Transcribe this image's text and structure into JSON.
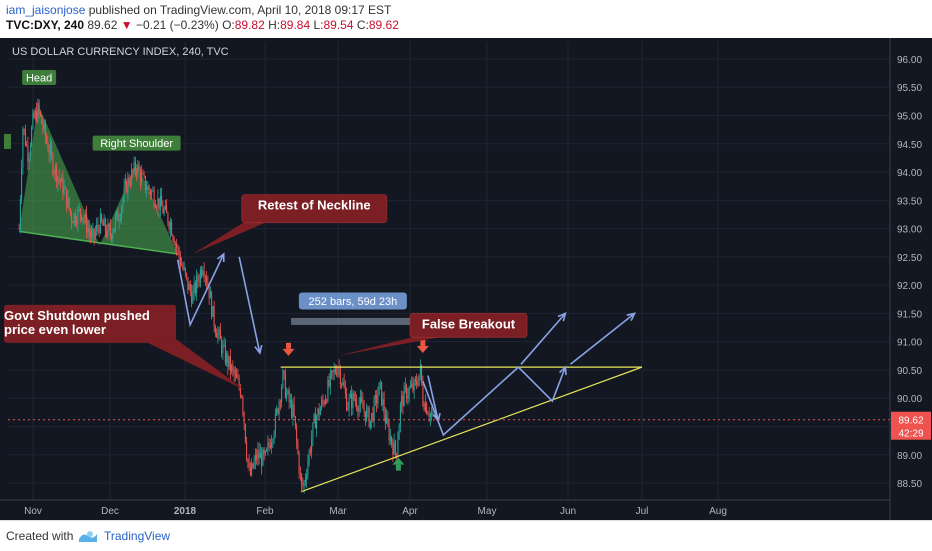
{
  "header": {
    "user": "iam_jaisonjose",
    "published": " published on TradingView.com, April 10, 2018 09:17 EST",
    "symbol": "TVC:DXY, 240",
    "last": "89.62",
    "arrow": "▼",
    "change": "−0.21 (−0.23%)",
    "o_label": "O:",
    "o_val": "89.82",
    "h_label": "H:",
    "h_val": "89.84",
    "l_label": "L:",
    "l_val": "89.54",
    "c_label": "C:",
    "c_val": "89.62"
  },
  "chart_data": {
    "type": "candlestick",
    "title": "US DOLLAR CURRENCY INDEX, 240, TVC",
    "ylim": [
      88.2,
      96.3
    ],
    "y_ticks": [
      "96.00",
      "95.50",
      "95.00",
      "94.50",
      "94.00",
      "93.50",
      "93.00",
      "92.50",
      "92.00",
      "91.50",
      "91.00",
      "90.50",
      "90.00",
      "89.50",
      "89.00",
      "88.50"
    ],
    "x_ticks": [
      "Nov",
      "Dec",
      "2018",
      "Feb",
      "Mar",
      "Apr",
      "May",
      "Jun",
      "Jul",
      "Aug"
    ],
    "price_label": "89.62",
    "time_label": "42:29",
    "resistance": 90.55,
    "path": [
      {
        "x": "Oct 25",
        "y": 93.0
      },
      {
        "x": "Oct 27",
        "y": 94.8
      },
      {
        "x": "Oct 30",
        "y": 94.3
      },
      {
        "x": "Nov 1",
        "y": 94.9
      },
      {
        "x": "Nov 3",
        "y": 95.1
      },
      {
        "x": "Nov 6",
        "y": 94.6
      },
      {
        "x": "Nov 9",
        "y": 94.1
      },
      {
        "x": "Nov 13",
        "y": 93.7
      },
      {
        "x": "Nov 16",
        "y": 93.2
      },
      {
        "x": "Nov 20",
        "y": 93.3
      },
      {
        "x": "Nov 24",
        "y": 92.8
      },
      {
        "x": "Nov 27",
        "y": 93.1
      },
      {
        "x": "Dec 1",
        "y": 92.9
      },
      {
        "x": "Dec 5",
        "y": 93.3
      },
      {
        "x": "Dec 8",
        "y": 93.8
      },
      {
        "x": "Dec 12",
        "y": 94.1
      },
      {
        "x": "Dec 15",
        "y": 93.8
      },
      {
        "x": "Dec 19",
        "y": 93.6
      },
      {
        "x": "Dec 22",
        "y": 93.4
      },
      {
        "x": "Dec 26",
        "y": 93.1
      },
      {
        "x": "Dec 29",
        "y": 92.6
      },
      {
        "x": "Jan 2",
        "y": 92.0
      },
      {
        "x": "Jan 4",
        "y": 91.8
      },
      {
        "x": "Jan 8",
        "y": 92.4
      },
      {
        "x": "Jan 10",
        "y": 92.0
      },
      {
        "x": "Jan 12",
        "y": 91.4
      },
      {
        "x": "Jan 16",
        "y": 90.8
      },
      {
        "x": "Jan 19",
        "y": 90.5
      },
      {
        "x": "Jan 23",
        "y": 90.1
      },
      {
        "x": "Jan 25",
        "y": 89.0
      },
      {
        "x": "Jan 26",
        "y": 88.6
      },
      {
        "x": "Jan 29",
        "y": 89.0
      },
      {
        "x": "Feb 1",
        "y": 88.9
      },
      {
        "x": "Feb 5",
        "y": 89.6
      },
      {
        "x": "Feb 8",
        "y": 90.4
      },
      {
        "x": "Feb 9",
        "y": 90.1
      },
      {
        "x": "Feb 12",
        "y": 89.7
      },
      {
        "x": "Feb 15",
        "y": 88.4
      },
      {
        "x": "Feb 16",
        "y": 88.5
      },
      {
        "x": "Feb 20",
        "y": 89.6
      },
      {
        "x": "Feb 23",
        "y": 89.9
      },
      {
        "x": "Feb 27",
        "y": 90.4
      },
      {
        "x": "Mar 1",
        "y": 90.6
      },
      {
        "x": "Mar 5",
        "y": 89.9
      },
      {
        "x": "Mar 8",
        "y": 90.0
      },
      {
        "x": "Mar 12",
        "y": 89.8
      },
      {
        "x": "Mar 15",
        "y": 89.6
      },
      {
        "x": "Mar 19",
        "y": 90.2
      },
      {
        "x": "Mar 22",
        "y": 89.5
      },
      {
        "x": "Mar 26",
        "y": 89.0
      },
      {
        "x": "Mar 28",
        "y": 89.9
      },
      {
        "x": "Mar 30",
        "y": 90.1
      },
      {
        "x": "Apr 3",
        "y": 90.2
      },
      {
        "x": "Apr 5",
        "y": 90.5
      },
      {
        "x": "Apr 6",
        "y": 90.0
      },
      {
        "x": "Apr 10",
        "y": 89.62
      }
    ],
    "annotations": {
      "head": "Head",
      "right_shoulder": "Right Shoulder",
      "retest": "Retest of Neckline",
      "govt": "Govt Shutdown pushed",
      "govt2": "price even lower",
      "false_breakout": "False Breakout",
      "bars_range": "252 bars, 59d 23h"
    },
    "colors": {
      "bg": "#131722",
      "up": "#26a69a",
      "down": "#ef5350",
      "pattern": "#4caf50",
      "label_red": "#7b1f24",
      "proj": "#8aa3e6",
      "resistance": "#e8e85a",
      "trend": "#e8e85a"
    }
  },
  "footer": {
    "created": "Created with",
    "brand": "TradingView"
  }
}
